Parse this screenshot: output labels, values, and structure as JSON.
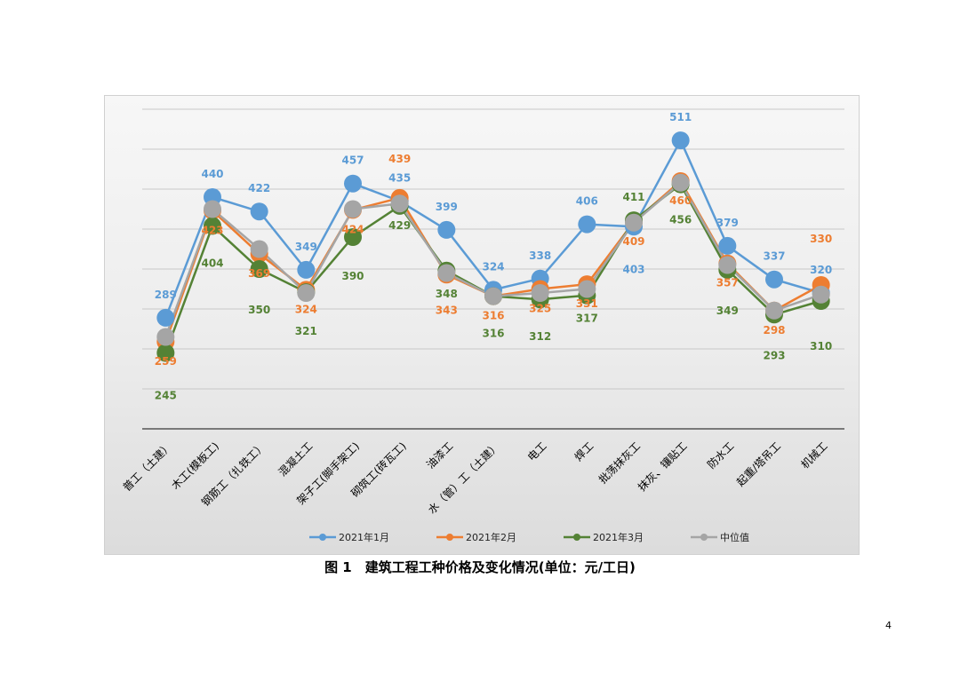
{
  "caption": "图 1　建筑工程工种价格及变化情况(单位：元/工日)",
  "page_number": "4",
  "chart_data": {
    "type": "line",
    "categories": [
      "普工（土建）",
      "木工(模板工)",
      "钢筋工（扎铁工）",
      "混凝土工",
      "架子工(脚手架工)",
      "砌筑工(砖瓦工)",
      "油漆工",
      "水（管）工（土建）",
      "电工",
      "焊工",
      "批荡抹灰工",
      "抹灰、镶贴工",
      "防水工",
      "起重/塔吊工",
      "机械工"
    ],
    "series": [
      {
        "name": "2021年1月",
        "color": "#5b9bd5",
        "values": [
          289,
          440,
          422,
          349,
          457,
          435,
          399,
          324,
          338,
          406,
          403,
          511,
          379,
          337,
          320
        ]
      },
      {
        "name": "2021年2月",
        "color": "#ed7d31",
        "values": [
          259,
          423,
          369,
          324,
          424,
          439,
          343,
          316,
          325,
          331,
          409,
          460,
          357,
          298,
          330
        ]
      },
      {
        "name": "2021年3月",
        "color": "#548235",
        "values": [
          245,
          404,
          350,
          321,
          390,
          429,
          348,
          316,
          312,
          317,
          411,
          456,
          349,
          293,
          310
        ]
      },
      {
        "name": "中位值",
        "color": "#a5a5a5",
        "values": [
          265,
          425,
          375,
          320,
          425,
          432,
          345,
          316,
          320,
          325,
          408,
          458,
          355,
          298,
          318
        ]
      }
    ],
    "labeled_series": [
      "2021年1月",
      "2021年2月",
      "2021年3月"
    ],
    "ylim": [
      150,
      550
    ],
    "grid": true,
    "legend_position": "bottom"
  }
}
